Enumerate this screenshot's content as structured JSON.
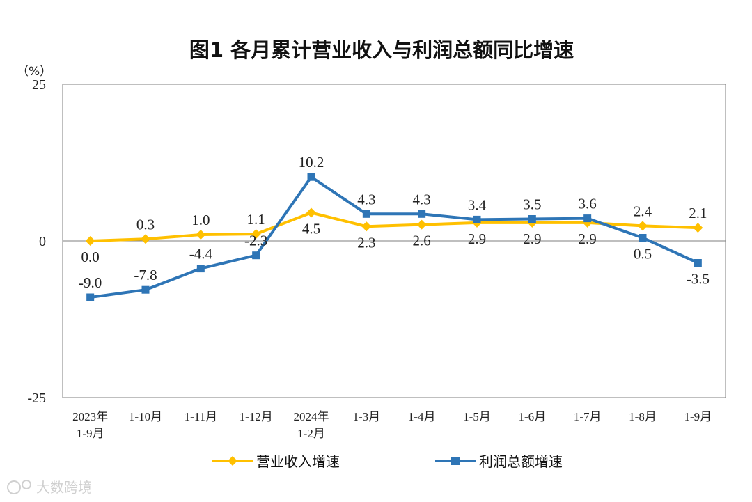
{
  "watermark": "大数跨境",
  "chart_data": {
    "type": "line",
    "title": "图1  各月累计营业收入与利润总额同比增速",
    "unit_label": "（%）",
    "ylim": [
      -25,
      25
    ],
    "yticks": [
      "25",
      "0",
      "-25"
    ],
    "ytick_values": [
      25,
      0,
      -25
    ],
    "categories": [
      [
        "2023年",
        "1-9月"
      ],
      [
        "1-10月"
      ],
      [
        "1-11月"
      ],
      [
        "1-12月"
      ],
      [
        "2024年",
        "1-2月"
      ],
      [
        "1-3月"
      ],
      [
        "1-4月"
      ],
      [
        "1-5月"
      ],
      [
        "1-6月"
      ],
      [
        "1-7月"
      ],
      [
        "1-8月"
      ],
      [
        "1-9月"
      ]
    ],
    "series": [
      {
        "name": "营业收入增速",
        "color": "#FFC000",
        "marker": "diamond",
        "values": [
          0.0,
          0.3,
          1.0,
          1.1,
          4.5,
          2.3,
          2.6,
          2.9,
          2.9,
          2.9,
          2.4,
          2.1
        ],
        "labels": [
          "0.0",
          "0.3",
          "1.0",
          "1.1",
          "4.5",
          "2.3",
          "2.6",
          "2.9",
          "2.9",
          "2.9",
          "2.4",
          "2.1"
        ],
        "label_pos": [
          "below",
          "above",
          "above",
          "above",
          "below",
          "below",
          "below",
          "below",
          "below",
          "below",
          "above",
          "above"
        ]
      },
      {
        "name": "利润总额增速",
        "color": "#2E75B6",
        "marker": "square",
        "values": [
          -9.0,
          -7.8,
          -4.4,
          -2.3,
          10.2,
          4.3,
          4.3,
          3.4,
          3.5,
          3.6,
          0.5,
          -3.5
        ],
        "labels": [
          "-9.0",
          "-7.8",
          "-4.4",
          "-2.3",
          "10.2",
          "4.3",
          "4.3",
          "3.4",
          "3.5",
          "3.6",
          "0.5",
          "-3.5"
        ],
        "label_pos": [
          "above",
          "above",
          "above",
          "above",
          "above",
          "above",
          "above",
          "above",
          "above",
          "above",
          "below",
          "below"
        ]
      }
    ]
  }
}
